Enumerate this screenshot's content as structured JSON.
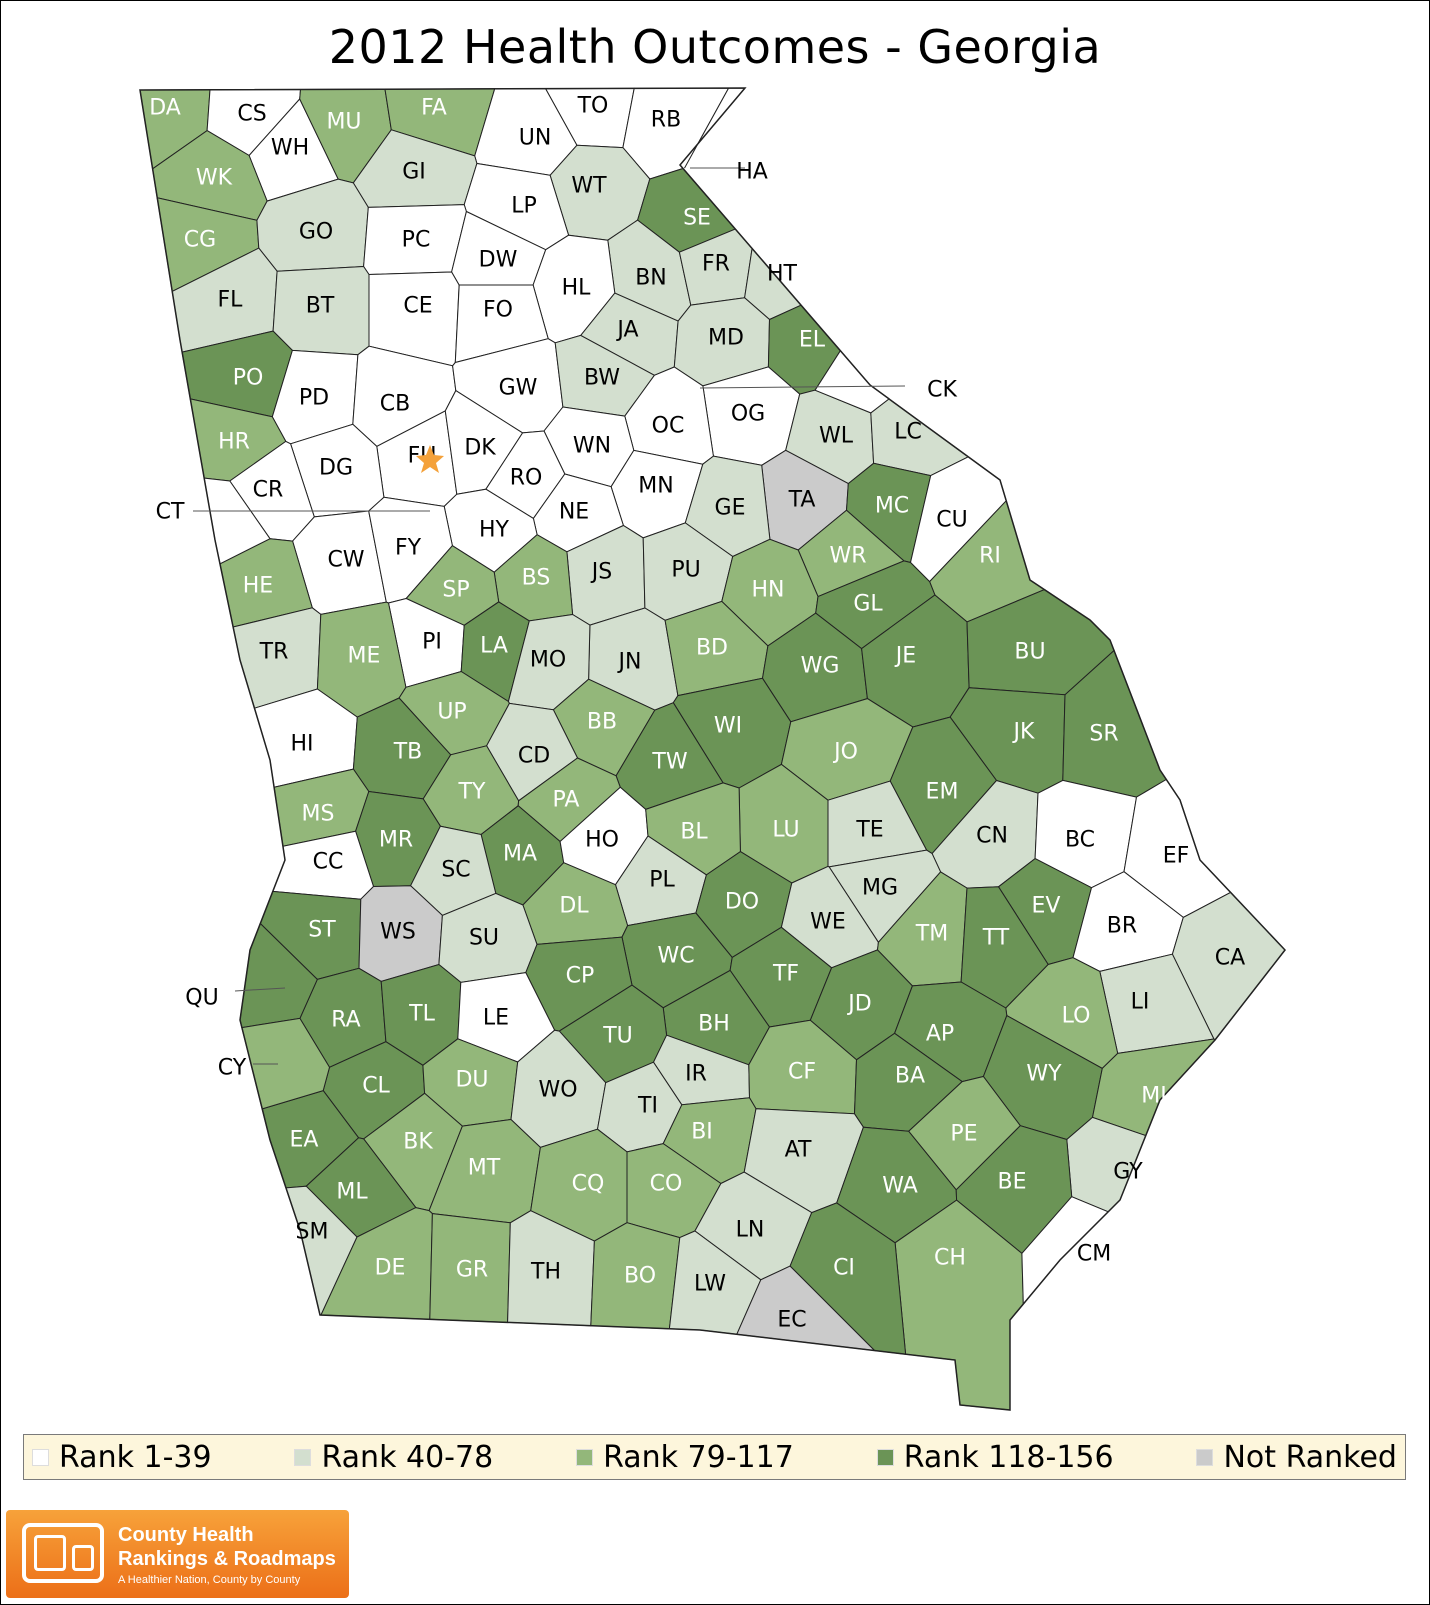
{
  "title": "2012 Health Outcomes - Georgia",
  "colors": {
    "rank_1_39": "#ffffff",
    "rank_40_78": "#d3dfcf",
    "rank_79_117": "#93b77a",
    "rank_118_156": "#6b9456",
    "not_ranked": "#cbcbcb",
    "border": "#222222",
    "star": "#f4a13a"
  },
  "legend": [
    {
      "label": "Rank 1-39",
      "class": "rank_1_39"
    },
    {
      "label": "Rank 40-78",
      "class": "rank_40_78"
    },
    {
      "label": "Rank 79-117",
      "class": "rank_79_117"
    },
    {
      "label": "Rank 118-156",
      "class": "rank_118_156"
    },
    {
      "label": "Not Ranked",
      "class": "not_ranked"
    }
  ],
  "logo": {
    "line1": "County Health",
    "line2": "Rankings & Roadmaps",
    "tagline": "A Healthier Nation, County by County"
  },
  "counties": [
    {
      "label": "DA",
      "rank_class": "rank_79_117"
    },
    {
      "label": "CS",
      "rank_class": "rank_1_39"
    },
    {
      "label": "WH",
      "rank_class": "rank_1_39"
    },
    {
      "label": "MU",
      "rank_class": "rank_79_117"
    },
    {
      "label": "FA",
      "rank_class": "rank_79_117"
    },
    {
      "label": "TO",
      "rank_class": "rank_1_39"
    },
    {
      "label": "RB",
      "rank_class": "rank_1_39"
    },
    {
      "label": "UN",
      "rank_class": "rank_1_39"
    },
    {
      "label": "WK",
      "rank_class": "rank_79_117"
    },
    {
      "label": "GI",
      "rank_class": "rank_40_78"
    },
    {
      "label": "WT",
      "rank_class": "rank_40_78"
    },
    {
      "label": "HA",
      "rank_class": "rank_1_39"
    },
    {
      "label": "LP",
      "rank_class": "rank_1_39"
    },
    {
      "label": "SE",
      "rank_class": "rank_118_156"
    },
    {
      "label": "CG",
      "rank_class": "rank_79_117"
    },
    {
      "label": "GO",
      "rank_class": "rank_40_78"
    },
    {
      "label": "PC",
      "rank_class": "rank_1_39"
    },
    {
      "label": "DW",
      "rank_class": "rank_1_39"
    },
    {
      "label": "BN",
      "rank_class": "rank_40_78"
    },
    {
      "label": "FR",
      "rank_class": "rank_40_78"
    },
    {
      "label": "HT",
      "rank_class": "rank_40_78"
    },
    {
      "label": "HL",
      "rank_class": "rank_1_39"
    },
    {
      "label": "FL",
      "rank_class": "rank_40_78"
    },
    {
      "label": "BT",
      "rank_class": "rank_40_78"
    },
    {
      "label": "CE",
      "rank_class": "rank_1_39"
    },
    {
      "label": "FO",
      "rank_class": "rank_1_39"
    },
    {
      "label": "JA",
      "rank_class": "rank_40_78"
    },
    {
      "label": "MD",
      "rank_class": "rank_40_78"
    },
    {
      "label": "EL",
      "rank_class": "rank_118_156"
    },
    {
      "label": "PO",
      "rank_class": "rank_118_156"
    },
    {
      "label": "PD",
      "rank_class": "rank_1_39"
    },
    {
      "label": "CB",
      "rank_class": "rank_1_39"
    },
    {
      "label": "GW",
      "rank_class": "rank_1_39"
    },
    {
      "label": "BW",
      "rank_class": "rank_40_78"
    },
    {
      "label": "OG",
      "rank_class": "rank_1_39"
    },
    {
      "label": "CK",
      "rank_class": "rank_1_39"
    },
    {
      "label": "OC",
      "rank_class": "rank_1_39"
    },
    {
      "label": "WL",
      "rank_class": "rank_40_78"
    },
    {
      "label": "LC",
      "rank_class": "rank_40_78"
    },
    {
      "label": "HR",
      "rank_class": "rank_79_117"
    },
    {
      "label": "FU",
      "rank_class": "rank_1_39"
    },
    {
      "label": "DK",
      "rank_class": "rank_1_39"
    },
    {
      "label": "WN",
      "rank_class": "rank_1_39"
    },
    {
      "label": "DG",
      "rank_class": "rank_1_39"
    },
    {
      "label": "RO",
      "rank_class": "rank_1_39"
    },
    {
      "label": "MN",
      "rank_class": "rank_1_39"
    },
    {
      "label": "CR",
      "rank_class": "rank_1_39"
    },
    {
      "label": "TA",
      "rank_class": "not_ranked"
    },
    {
      "label": "MC",
      "rank_class": "rank_118_156"
    },
    {
      "label": "GE",
      "rank_class": "rank_40_78"
    },
    {
      "label": "CT",
      "rank_class": "rank_1_39"
    },
    {
      "label": "NE",
      "rank_class": "rank_1_39"
    },
    {
      "label": "HY",
      "rank_class": "rank_1_39"
    },
    {
      "label": "CU",
      "rank_class": "rank_1_39"
    },
    {
      "label": "CW",
      "rank_class": "rank_1_39"
    },
    {
      "label": "FY",
      "rank_class": "rank_1_39"
    },
    {
      "label": "JS",
      "rank_class": "rank_40_78"
    },
    {
      "label": "PU",
      "rank_class": "rank_40_78"
    },
    {
      "label": "WR",
      "rank_class": "rank_79_117"
    },
    {
      "label": "RI",
      "rank_class": "rank_79_117"
    },
    {
      "label": "HE",
      "rank_class": "rank_79_117"
    },
    {
      "label": "BS",
      "rank_class": "rank_79_117"
    },
    {
      "label": "SP",
      "rank_class": "rank_79_117"
    },
    {
      "label": "HN",
      "rank_class": "rank_79_117"
    },
    {
      "label": "GL",
      "rank_class": "rank_118_156"
    },
    {
      "label": "TR",
      "rank_class": "rank_40_78"
    },
    {
      "label": "PI",
      "rank_class": "rank_1_39"
    },
    {
      "label": "LA",
      "rank_class": "rank_118_156"
    },
    {
      "label": "JN",
      "rank_class": "rank_40_78"
    },
    {
      "label": "BD",
      "rank_class": "rank_79_117"
    },
    {
      "label": "WG",
      "rank_class": "rank_118_156"
    },
    {
      "label": "JE",
      "rank_class": "rank_118_156"
    },
    {
      "label": "BU",
      "rank_class": "rank_118_156"
    },
    {
      "label": "ME",
      "rank_class": "rank_79_117"
    },
    {
      "label": "MO",
      "rank_class": "rank_40_78"
    },
    {
      "label": "UP",
      "rank_class": "rank_79_117"
    },
    {
      "label": "BB",
      "rank_class": "rank_79_117"
    },
    {
      "label": "WI",
      "rank_class": "rank_118_156"
    },
    {
      "label": "JK",
      "rank_class": "rank_118_156"
    },
    {
      "label": "SR",
      "rank_class": "rank_118_156"
    },
    {
      "label": "HI",
      "rank_class": "rank_1_39"
    },
    {
      "label": "TB",
      "rank_class": "rank_118_156"
    },
    {
      "label": "CD",
      "rank_class": "rank_40_78"
    },
    {
      "label": "TW",
      "rank_class": "rank_118_156"
    },
    {
      "label": "JO",
      "rank_class": "rank_79_117"
    },
    {
      "label": "EM",
      "rank_class": "rank_118_156"
    },
    {
      "label": "TY",
      "rank_class": "rank_79_117"
    },
    {
      "label": "PA",
      "rank_class": "rank_79_117"
    },
    {
      "label": "MS",
      "rank_class": "rank_79_117"
    },
    {
      "label": "LU",
      "rank_class": "rank_79_117"
    },
    {
      "label": "TE",
      "rank_class": "rank_40_78"
    },
    {
      "label": "CN",
      "rank_class": "rank_40_78"
    },
    {
      "label": "BC",
      "rank_class": "rank_1_39"
    },
    {
      "label": "EF",
      "rank_class": "rank_1_39"
    },
    {
      "label": "MR",
      "rank_class": "rank_118_156"
    },
    {
      "label": "MA",
      "rank_class": "rank_118_156"
    },
    {
      "label": "HO",
      "rank_class": "rank_1_39"
    },
    {
      "label": "BL",
      "rank_class": "rank_79_117"
    },
    {
      "label": "SC",
      "rank_class": "rank_40_78"
    },
    {
      "label": "CC",
      "rank_class": "rank_1_39"
    },
    {
      "label": "PL",
      "rank_class": "rank_40_78"
    },
    {
      "label": "MG",
      "rank_class": "rank_40_78"
    },
    {
      "label": "DO",
      "rank_class": "rank_118_156"
    },
    {
      "label": "DL",
      "rank_class": "rank_79_117"
    },
    {
      "label": "EV",
      "rank_class": "rank_118_156"
    },
    {
      "label": "ST",
      "rank_class": "rank_118_156"
    },
    {
      "label": "WS",
      "rank_class": "not_ranked"
    },
    {
      "label": "SU",
      "rank_class": "rank_40_78"
    },
    {
      "label": "WE",
      "rank_class": "rank_40_78"
    },
    {
      "label": "TM",
      "rank_class": "rank_79_117"
    },
    {
      "label": "TT",
      "rank_class": "rank_118_156"
    },
    {
      "label": "BR",
      "rank_class": "rank_1_39"
    },
    {
      "label": "WC",
      "rank_class": "rank_118_156"
    },
    {
      "label": "CA",
      "rank_class": "rank_40_78"
    },
    {
      "label": "CP",
      "rank_class": "rank_118_156"
    },
    {
      "label": "TF",
      "rank_class": "rank_118_156"
    },
    {
      "label": "QU",
      "rank_class": "rank_118_156"
    },
    {
      "label": "LI",
      "rank_class": "rank_40_78"
    },
    {
      "label": "RA",
      "rank_class": "rank_118_156"
    },
    {
      "label": "TL",
      "rank_class": "rank_118_156"
    },
    {
      "label": "LE",
      "rank_class": "rank_1_39"
    },
    {
      "label": "JD",
      "rank_class": "rank_118_156"
    },
    {
      "label": "LO",
      "rank_class": "rank_79_117"
    },
    {
      "label": "BH",
      "rank_class": "rank_118_156"
    },
    {
      "label": "AP",
      "rank_class": "rank_118_156"
    },
    {
      "label": "TU",
      "rank_class": "rank_118_156"
    },
    {
      "label": "CY",
      "rank_class": "rank_79_117"
    },
    {
      "label": "IR",
      "rank_class": "rank_40_78"
    },
    {
      "label": "CF",
      "rank_class": "rank_79_117"
    },
    {
      "label": "WY",
      "rank_class": "rank_118_156"
    },
    {
      "label": "BA",
      "rank_class": "rank_118_156"
    },
    {
      "label": "CL",
      "rank_class": "rank_118_156"
    },
    {
      "label": "DU",
      "rank_class": "rank_79_117"
    },
    {
      "label": "WO",
      "rank_class": "rank_40_78"
    },
    {
      "label": "MI",
      "rank_class": "rank_79_117"
    },
    {
      "label": "TI",
      "rank_class": "rank_40_78"
    },
    {
      "label": "EA",
      "rank_class": "rank_118_156"
    },
    {
      "label": "PE",
      "rank_class": "rank_79_117"
    },
    {
      "label": "BI",
      "rank_class": "rank_79_117"
    },
    {
      "label": "BK",
      "rank_class": "rank_79_117"
    },
    {
      "label": "AT",
      "rank_class": "rank_40_78"
    },
    {
      "label": "GY",
      "rank_class": "rank_40_78"
    },
    {
      "label": "MT",
      "rank_class": "rank_79_117"
    },
    {
      "label": "WA",
      "rank_class": "rank_118_156"
    },
    {
      "label": "BE",
      "rank_class": "rank_118_156"
    },
    {
      "label": "CQ",
      "rank_class": "rank_79_117"
    },
    {
      "label": "CO",
      "rank_class": "rank_79_117"
    },
    {
      "label": "ML",
      "rank_class": "rank_118_156"
    },
    {
      "label": "SM",
      "rank_class": "rank_40_78"
    },
    {
      "label": "LN",
      "rank_class": "rank_40_78"
    },
    {
      "label": "CH",
      "rank_class": "rank_79_117"
    },
    {
      "label": "CM",
      "rank_class": "rank_1_39"
    },
    {
      "label": "DE",
      "rank_class": "rank_79_117"
    },
    {
      "label": "GR",
      "rank_class": "rank_79_117"
    },
    {
      "label": "TH",
      "rank_class": "rank_40_78"
    },
    {
      "label": "CI",
      "rank_class": "rank_118_156"
    },
    {
      "label": "BO",
      "rank_class": "rank_79_117"
    },
    {
      "label": "LW",
      "rank_class": "rank_40_78"
    },
    {
      "label": "EC",
      "rank_class": "not_ranked"
    }
  ]
}
